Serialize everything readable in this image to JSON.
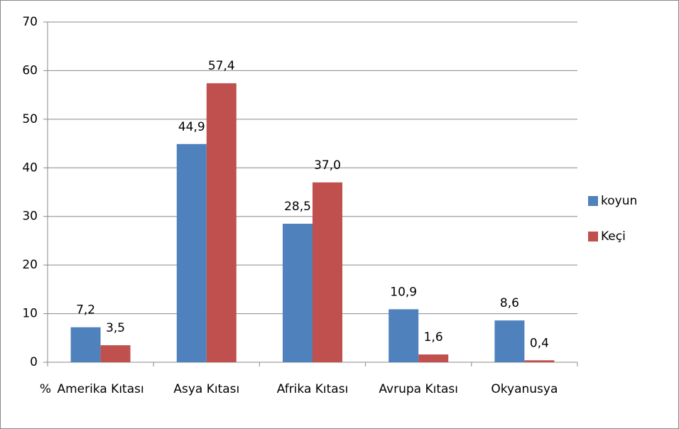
{
  "chart_data": {
    "type": "bar",
    "y_label": "%",
    "categories": [
      "Amerika Kıtası",
      "Asya Kıtası",
      "Afrika Kıtası",
      "Avrupa Kıtası",
      "Okyanusya"
    ],
    "series": [
      {
        "name": "koyun",
        "color": "#4f81bd",
        "values": [
          7.2,
          44.9,
          28.5,
          10.9,
          8.6
        ],
        "value_labels": [
          "7,2",
          "44,9",
          "28,5",
          "10,9",
          "8,6"
        ]
      },
      {
        "name": "Keçi",
        "color": "#c0504d",
        "values": [
          3.5,
          57.4,
          37.0,
          1.6,
          0.4
        ],
        "value_labels": [
          "3,5",
          "57,4",
          "37,0",
          "1,6",
          "0,4"
        ]
      }
    ],
    "ylim": [
      0,
      70
    ],
    "yticks": [
      0,
      10,
      20,
      30,
      40,
      50,
      60,
      70
    ],
    "grid": true,
    "legend": "right"
  }
}
